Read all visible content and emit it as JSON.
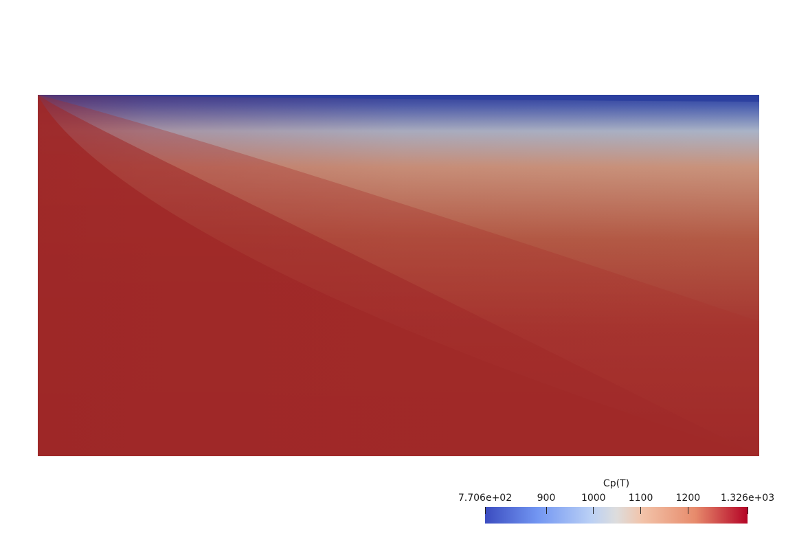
{
  "colorbar": {
    "title": "Cp(T)",
    "range": [
      770.6,
      1326
    ],
    "ticks": [
      {
        "value": 770.6,
        "label": "7.706e+02"
      },
      {
        "value": 900,
        "label": "900"
      },
      {
        "value": 1000,
        "label": "1000"
      },
      {
        "value": 1100,
        "label": "1100"
      },
      {
        "value": 1200,
        "label": "1200"
      },
      {
        "value": 1326,
        "label": "1.326e+03"
      }
    ],
    "colormap": "cool-to-warm",
    "colors": {
      "low": "#3b4cc0",
      "mid": "#dddddd",
      "high": "#b40426"
    }
  },
  "field": {
    "variable": "Cp(T)",
    "colors": {
      "blue": "#2b3f9f",
      "gray_blue": "#aab4c8",
      "tan": "#c9927a",
      "salmon": "#c4725a",
      "red": "#9b2426"
    }
  }
}
